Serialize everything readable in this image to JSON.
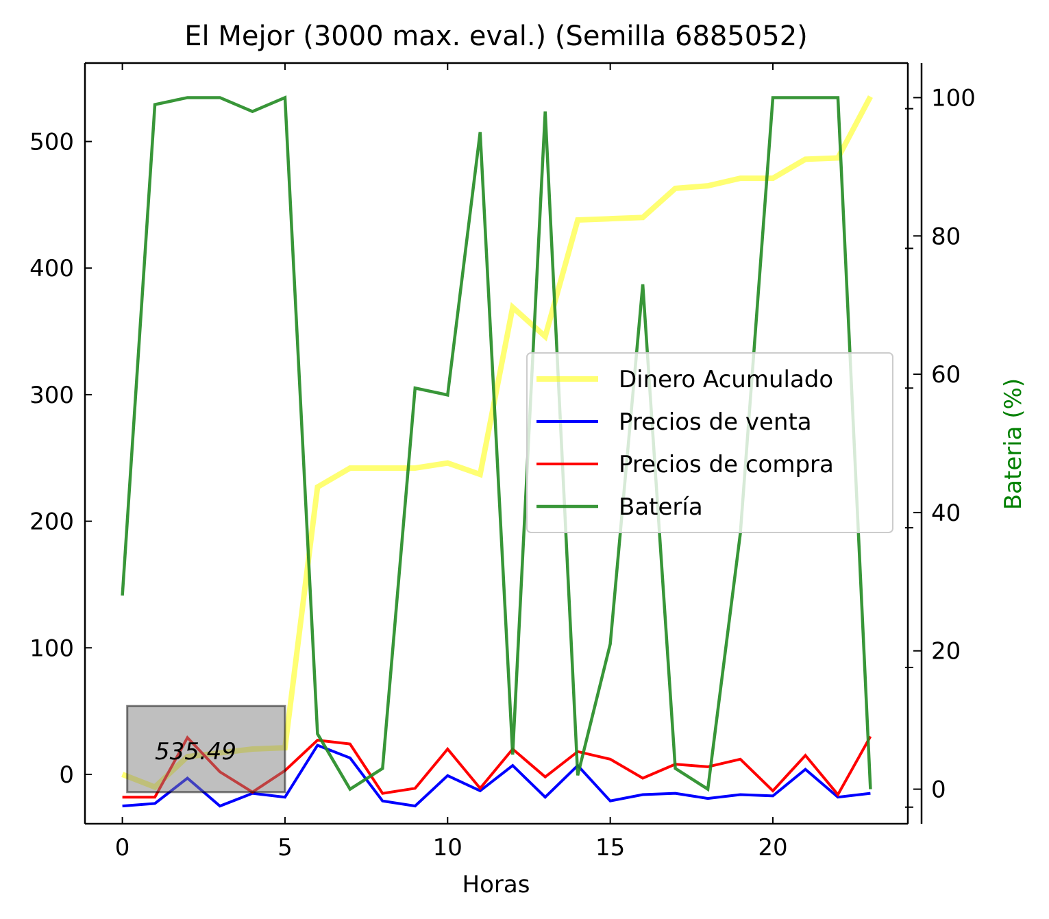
{
  "chart_data": {
    "type": "line",
    "title": "El Mejor (3000 max. eval.) (Semilla 6885052)",
    "xlabel": "Horas",
    "ylabel": "",
    "y2label": "Bateria (%)",
    "xlim": [
      -1.15,
      24.15
    ],
    "ylim": [
      -39,
      562
    ],
    "y2lim": [
      -5,
      105
    ],
    "xticks": [
      0,
      5,
      10,
      15,
      20
    ],
    "yticks": [
      0,
      100,
      200,
      300,
      400,
      500
    ],
    "y2ticks": [
      0,
      20,
      40,
      60,
      80,
      100
    ],
    "grid": false,
    "legend_position": "center-right",
    "x": [
      0,
      1,
      2,
      3,
      4,
      5,
      6,
      7,
      8,
      9,
      10,
      11,
      12,
      13,
      14,
      15,
      16,
      17,
      18,
      19,
      20,
      21,
      22,
      23
    ],
    "series": [
      {
        "name": "Dinero Acumulado",
        "axis": "left",
        "color": "#ffff00",
        "values": [
          0,
          -10,
          14,
          17,
          20,
          21,
          227,
          242,
          242,
          242,
          246,
          237,
          369,
          346,
          438,
          439,
          440,
          463,
          465,
          471,
          471,
          486,
          487,
          535.49
        ]
      },
      {
        "name": "Precios de venta",
        "axis": "left",
        "color": "#0000ff",
        "values": [
          -25,
          -23,
          -3,
          -25,
          -15,
          -18,
          23,
          13,
          -21,
          -25,
          -1,
          -13,
          7,
          -18,
          7,
          -21,
          -16,
          -15,
          -19,
          -16,
          -17,
          4,
          -18,
          -15
        ]
      },
      {
        "name": "Precios de compra",
        "axis": "left",
        "color": "#ff0000",
        "values": [
          -18,
          -18,
          29,
          2,
          -14,
          3,
          27,
          24,
          -15,
          -11,
          20,
          -11,
          20,
          -2,
          18,
          12,
          -3,
          8,
          6,
          12,
          -13,
          15,
          -16,
          30
        ]
      },
      {
        "name": "Batería",
        "axis": "right",
        "color": "#228b22",
        "values": [
          28,
          99,
          100,
          100,
          98,
          100,
          8,
          0,
          3,
          58,
          57,
          95,
          5,
          98,
          2,
          21,
          73,
          3,
          0,
          37,
          100,
          100,
          100,
          0
        ]
      }
    ],
    "annotation": {
      "text": "535.49"
    }
  }
}
